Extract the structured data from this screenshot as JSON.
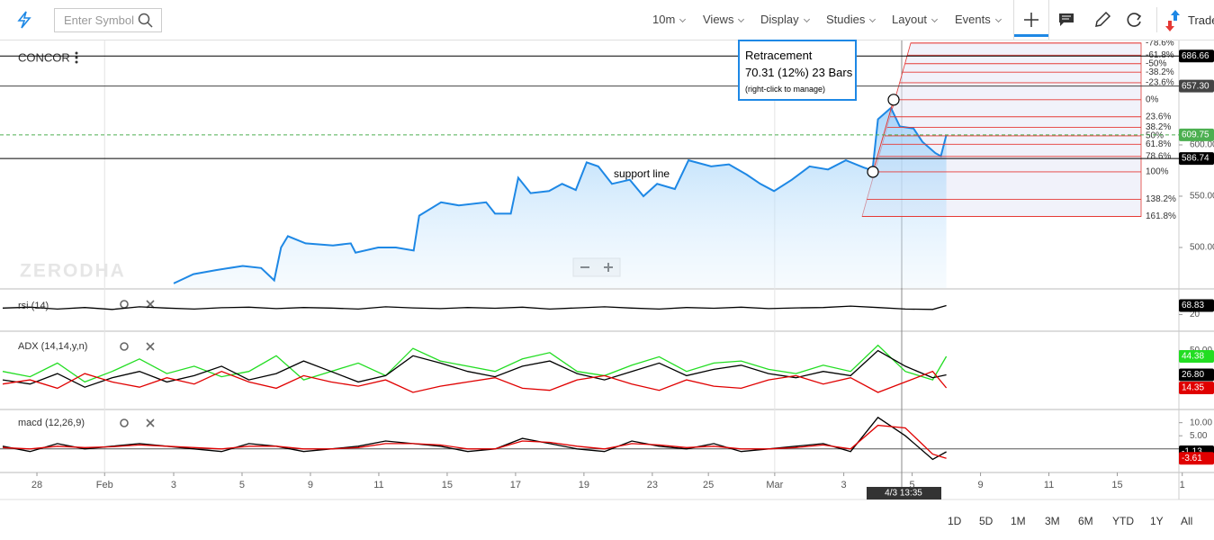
{
  "toolbar": {
    "search_placeholder": "Enter Symbol",
    "menus": [
      "10m",
      "Views",
      "Display",
      "Studies",
      "Layout",
      "Events"
    ],
    "trade": "Trade"
  },
  "symbol": "CONCOR",
  "watermark": "ZERODHA",
  "retracement": {
    "title": "Retracement",
    "detail": "70.31 (12%) 23 Bars",
    "hint": "(right-click to manage)"
  },
  "crosshair_label": "4/3 13:35",
  "ranges": [
    "1D",
    "5D",
    "1M",
    "3M",
    "6M",
    "YTD",
    "1Y",
    "All"
  ],
  "chart_data": [
    {
      "type": "area",
      "color": "#1e88e5",
      "x": [
        2.0,
        2.29,
        2.62,
        3.01,
        3.28,
        3.47,
        3.57,
        3.67,
        3.93,
        4.33,
        4.59,
        4.66,
        4.99,
        5.25,
        5.51,
        5.59,
        5.91,
        6.17,
        6.57,
        6.7,
        6.93,
        7.04,
        7.22,
        7.49,
        7.68,
        7.88,
        8.04,
        8.21,
        8.41,
        8.67,
        8.87,
        9.07,
        9.33,
        9.53,
        9.86,
        10.12,
        10.38,
        10.58,
        10.78,
        11.04,
        11.3,
        11.57,
        11.83,
        12.09,
        12.22,
        12.3,
        12.49,
        12.62,
        12.82,
        12.95,
        13.14,
        13.22,
        13.3
      ],
      "values": [
        465,
        474,
        478,
        482,
        480,
        468,
        500,
        511,
        504,
        502,
        504,
        495,
        500,
        500,
        497,
        531,
        544,
        541,
        544,
        533,
        533,
        568,
        553,
        555,
        562,
        556,
        583,
        579,
        562,
        566,
        550,
        562,
        557,
        585,
        579,
        581,
        571,
        562,
        555,
        566,
        579,
        576,
        585,
        578,
        575,
        625,
        636,
        618,
        616,
        603,
        592,
        589,
        609.75
      ],
      "xlim": [
        -0.54,
        16.78
      ],
      "xticks": [
        {
          "value": 0,
          "label": "28"
        },
        {
          "value": 0.99,
          "label": "Feb"
        },
        {
          "value": 2,
          "label": "3"
        },
        {
          "value": 3,
          "label": "5"
        },
        {
          "value": 4,
          "label": "9"
        },
        {
          "value": 5,
          "label": "11"
        },
        {
          "value": 6,
          "label": "15"
        },
        {
          "value": 7,
          "label": "17"
        },
        {
          "value": 8,
          "label": "19"
        },
        {
          "value": 9,
          "label": "23"
        },
        {
          "value": 9.82,
          "label": "25"
        },
        {
          "value": 10.79,
          "label": "Mar"
        },
        {
          "value": 11.8,
          "label": "3"
        },
        {
          "value": 12.8,
          "label": "5"
        },
        {
          "value": 13.8,
          "label": "9"
        },
        {
          "value": 14.8,
          "label": "11"
        },
        {
          "value": 15.8,
          "label": "15"
        },
        {
          "value": 16.75,
          "label": "1"
        }
      ],
      "ylim": [
        460.5,
        701.75
      ],
      "yticks": [
        {
          "value": 500,
          "label": "500.00"
        },
        {
          "value": 550,
          "label": "550.00"
        },
        {
          "value": 600,
          "label": "600.00"
        }
      ],
      "price_lines": [
        686.66,
        {
          "value": 657.3,
          "label": "657.30"
        },
        586.74
      ],
      "price_line_colors": [
        "#000000",
        "#444444",
        "#000000"
      ],
      "last_color": "#4caf50",
      "annotation": "support line",
      "fibonacci": {
        "high": 644.0,
        "low": 573.69,
        "color": "#e53935",
        "levels": [
          {
            "value": -78.6,
            "label": "-78.6%"
          },
          {
            "value": -61.8,
            "label": "-61.8%"
          },
          {
            "value": -50,
            "label": "-50%"
          },
          {
            "value": -38.2,
            "label": "-38.2%"
          },
          {
            "value": -23.6,
            "label": "-23.6%"
          },
          {
            "value": 0,
            "label": "0%"
          },
          {
            "value": 23.6,
            "label": "23.6%"
          },
          {
            "value": 38.2,
            "label": "38.2%"
          },
          {
            "value": 50,
            "label": "50%"
          },
          {
            "value": 61.8,
            "label": "61.8%"
          },
          {
            "value": 78.6,
            "label": "78.6%"
          },
          {
            "value": 100,
            "label": "100%"
          },
          {
            "value": 138.2,
            "label": "138.2%"
          },
          {
            "value": 161.8,
            "label": "161.8%"
          }
        ]
      }
    },
    {
      "type": "line",
      "title": "rsi (14)",
      "x": [
        -0.5,
        -0.1,
        0.3,
        0.7,
        1.1,
        1.5,
        1.9,
        2.3,
        2.7,
        3.1,
        3.5,
        3.9,
        4.3,
        4.7,
        5.1,
        5.5,
        5.9,
        6.3,
        6.7,
        7.1,
        7.5,
        7.9,
        8.3,
        8.7,
        9.1,
        9.5,
        9.9,
        10.3,
        10.7,
        11.1,
        11.5,
        11.9,
        12.3,
        12.7,
        13.1,
        13.3
      ],
      "ylim": [
        -60,
        144
      ],
      "yticks": [
        20
      ],
      "series": [
        {
          "color": "#000000",
          "values": [
            55,
            60,
            50,
            58,
            48,
            62,
            55,
            50,
            57,
            60,
            52,
            58,
            55,
            50,
            62,
            56,
            52,
            58,
            54,
            60,
            50,
            56,
            62,
            55,
            50,
            58,
            54,
            60,
            52,
            56,
            58,
            66,
            58,
            50,
            48,
            68.83
          ]
        }
      ]
    },
    {
      "type": "line",
      "title": "ADX (14,14,y,n)",
      "x": [
        -0.5,
        -0.1,
        0.3,
        0.7,
        1.1,
        1.5,
        1.9,
        2.3,
        2.7,
        3.1,
        3.5,
        3.9,
        4.3,
        4.7,
        5.1,
        5.5,
        5.9,
        6.3,
        6.7,
        7.1,
        7.5,
        7.9,
        8.3,
        8.7,
        9.1,
        9.5,
        9.9,
        10.3,
        10.7,
        11.1,
        11.5,
        11.9,
        12.3,
        12.7,
        13.1,
        13.3
      ],
      "ylim": [
        -3.7,
        66.7
      ],
      "yticks": [
        {
          "value": 50,
          "label": "50.00"
        }
      ],
      "series": [
        {
          "color": "#22dd22",
          "values": [
            30,
            25,
            38,
            20,
            30,
            42,
            28,
            35,
            25,
            30,
            45,
            22,
            30,
            38,
            26,
            52,
            40,
            35,
            30,
            42,
            48,
            30,
            26,
            36,
            44,
            30,
            38,
            40,
            32,
            28,
            36,
            30,
            55,
            30,
            22,
            44.38
          ]
        },
        {
          "color": "#000000",
          "values": [
            22,
            18,
            28,
            15,
            24,
            30,
            20,
            26,
            35,
            22,
            28,
            40,
            30,
            20,
            26,
            45,
            38,
            30,
            25,
            35,
            40,
            28,
            22,
            30,
            38,
            26,
            32,
            36,
            28,
            24,
            30,
            26,
            50,
            35,
            24,
            26.8
          ],
          "value_labels": [
            null,
            null,
            null,
            null,
            null,
            null,
            null,
            null,
            null,
            null,
            null,
            null,
            null,
            null,
            null,
            null,
            null,
            null,
            null,
            null,
            null,
            null,
            null,
            null,
            null,
            null,
            null,
            null,
            null,
            null,
            null,
            null,
            null,
            null,
            null,
            "26.80"
          ]
        },
        {
          "color": "#e00000",
          "values": [
            18,
            22,
            14,
            28,
            20,
            15,
            24,
            18,
            30,
            20,
            14,
            26,
            20,
            16,
            22,
            10,
            16,
            20,
            24,
            14,
            12,
            22,
            26,
            18,
            12,
            22,
            16,
            14,
            22,
            26,
            18,
            24,
            10,
            20,
            30,
            14.35
          ]
        }
      ]
    },
    {
      "type": "line",
      "title": "macd (12,26,9)",
      "x": [
        -0.5,
        -0.1,
        0.3,
        0.7,
        1.1,
        1.5,
        1.9,
        2.3,
        2.7,
        3.1,
        3.5,
        3.9,
        4.3,
        4.7,
        5.1,
        5.5,
        5.9,
        6.3,
        6.7,
        7.1,
        7.5,
        7.9,
        8.3,
        8.7,
        9.1,
        9.5,
        9.9,
        10.3,
        10.7,
        11.1,
        11.5,
        11.9,
        12.3,
        12.7,
        13.1,
        13.3
      ],
      "ylim": [
        -8.67,
        14
      ],
      "yticks": [
        {
          "value": 10,
          "label": "10.00"
        },
        {
          "value": 5,
          "label": "5.00"
        }
      ],
      "zero_line": 0,
      "series": [
        {
          "color": "#000000",
          "values": [
            1,
            -1,
            2,
            0,
            1,
            2,
            1,
            0,
            -1,
            2,
            1,
            -1,
            0,
            1,
            3,
            2,
            1,
            -1,
            0,
            4,
            2,
            0,
            -1,
            3,
            1,
            0,
            2,
            -1,
            0,
            1,
            2,
            -1,
            12,
            5,
            -4,
            -1.13
          ]
        },
        {
          "color": "#e00000",
          "values": [
            0.5,
            0,
            1,
            0.5,
            0.8,
            1.5,
            1,
            0.5,
            0,
            1,
            1,
            0,
            0,
            0.5,
            2,
            2,
            1.5,
            0,
            0,
            3,
            2.5,
            1,
            0,
            2,
            1.5,
            0.5,
            1,
            0,
            0,
            0.5,
            1.5,
            0,
            9,
            8,
            -2,
            -3.61
          ]
        }
      ]
    }
  ]
}
